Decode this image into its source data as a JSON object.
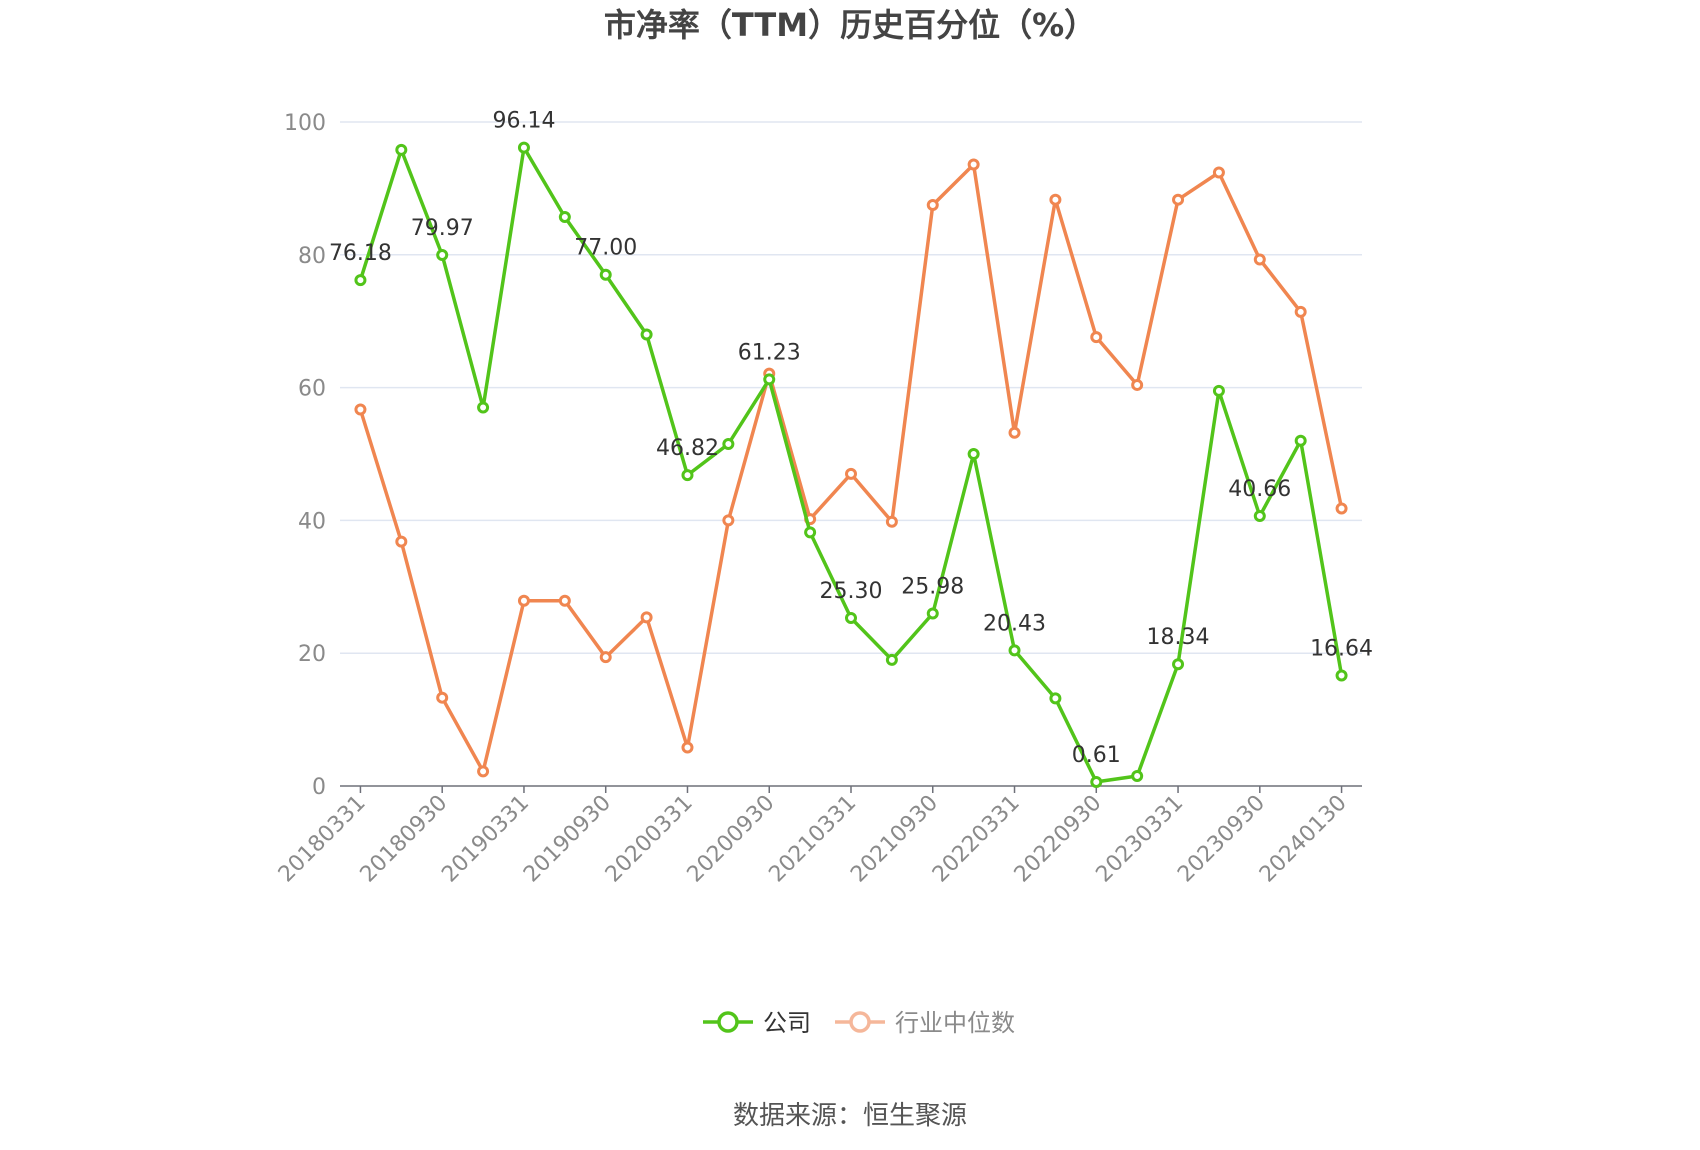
{
  "chart_data": {
    "type": "line",
    "title": "市净率（TTM）历史百分位（%）",
    "source": "数据来源：恒生聚源",
    "ylim": [
      0,
      100
    ],
    "yticks": [
      0,
      20,
      40,
      60,
      80,
      100
    ],
    "grid": true,
    "legend_position": "bottom-center",
    "x": [
      "20180331",
      "20180630",
      "20180930",
      "20181231",
      "20190331",
      "20190630",
      "20190930",
      "20191231",
      "20200331",
      "20200630",
      "20200930",
      "20201231",
      "20210331",
      "20210630",
      "20210930",
      "20211231",
      "20220331",
      "20220630",
      "20220930",
      "20221231",
      "20230331",
      "20230630",
      "20230930",
      "20231231",
      "20240130"
    ],
    "x_tick_labels": [
      "20180331",
      "20180930",
      "20190331",
      "20190930",
      "20200331",
      "20200930",
      "20210331",
      "20210930",
      "20220331",
      "20220930",
      "20230331",
      "20230930",
      "20240130"
    ],
    "series": [
      {
        "name": "公司",
        "color": "#52c41a",
        "values": [
          76.18,
          95.8,
          79.97,
          57.0,
          96.14,
          85.7,
          77.0,
          68.0,
          46.82,
          51.5,
          61.23,
          38.2,
          25.3,
          19.0,
          25.98,
          50.0,
          20.43,
          13.2,
          0.61,
          1.5,
          18.34,
          59.5,
          40.66,
          52.0,
          16.64
        ],
        "labels": [
          "76.18",
          "",
          "79.97",
          "",
          "96.14",
          "",
          "77.00",
          "",
          "46.82",
          "",
          "61.23",
          "",
          "25.30",
          "",
          "25.98",
          "",
          "20.43",
          "",
          "0.61",
          "",
          "18.34",
          "",
          "40.66",
          "",
          "16.64"
        ]
      },
      {
        "name": "行业中位数",
        "color": "#f08650",
        "legend_color": "#f5b79a",
        "values": [
          56.7,
          36.8,
          13.3,
          2.2,
          27.9,
          27.9,
          19.4,
          25.4,
          5.8,
          40.0,
          62.1,
          40.2,
          47.0,
          39.8,
          87.5,
          93.6,
          53.2,
          88.3,
          67.6,
          60.4,
          88.3,
          92.4,
          79.3,
          71.4,
          41.8
        ]
      }
    ]
  }
}
